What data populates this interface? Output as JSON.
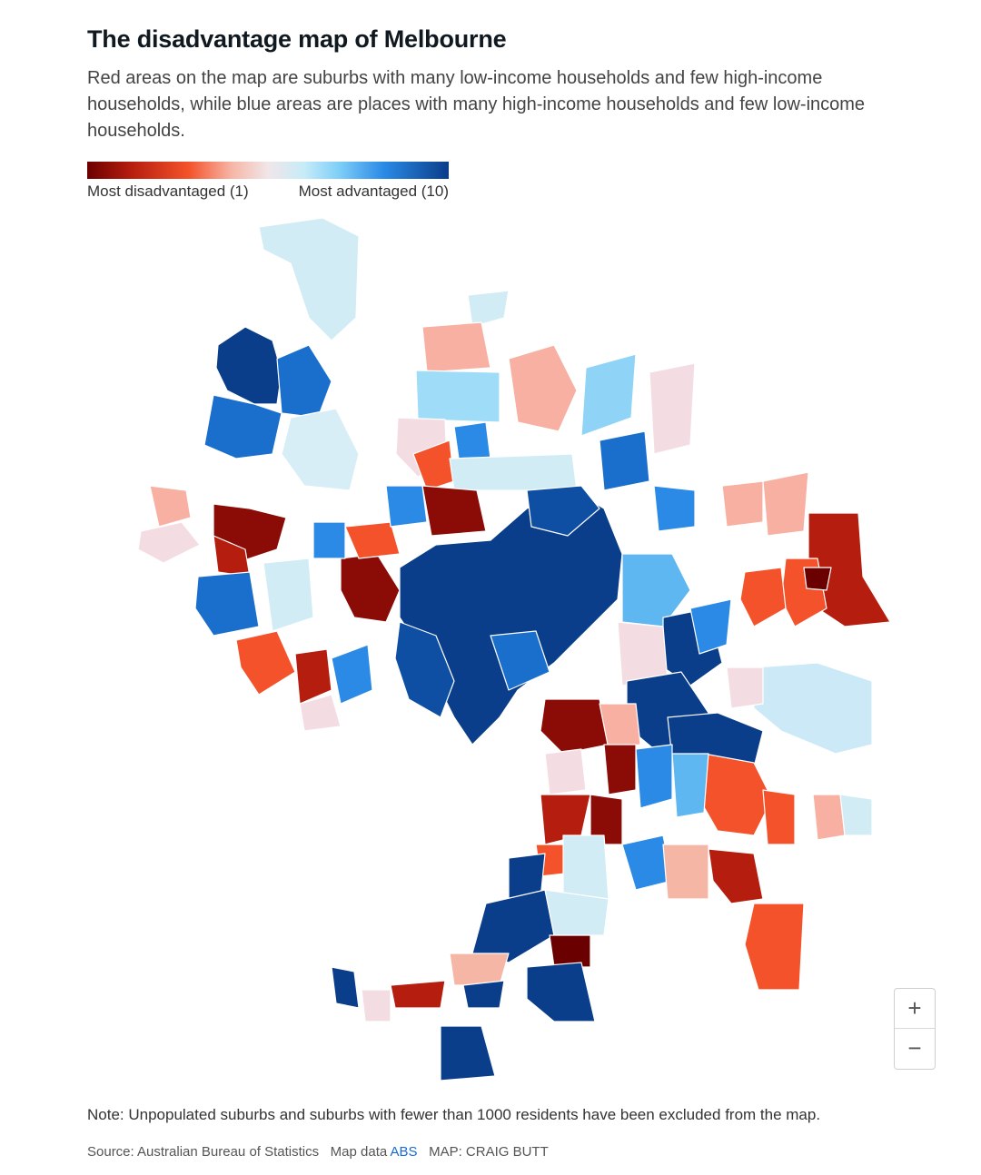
{
  "header": {
    "title": "The disadvantage map of Melbourne",
    "subtitle": "Red areas on the map are suburbs with many low-income households and few high-income households, while blue areas are places with many high-income households and few low-income households."
  },
  "legend": {
    "min_label": "Most disadvantaged (1)",
    "max_label": "Most advantaged (10)",
    "colors": [
      "#6b0000",
      "#b51d0e",
      "#f4522a",
      "#f6b6a6",
      "#f1e6e8",
      "#c6ecf8",
      "#7ccdf7",
      "#2b8ae6",
      "#0a3d8a"
    ]
  },
  "zoom": {
    "in_label": "+",
    "out_label": "−"
  },
  "footer": {
    "note": "Note: Unpopulated suburbs and suburbs with fewer than 1000 residents have been excluded from the map.",
    "source_prefix": "Source: Australian Bureau of Statistics",
    "map_data_label": "Map data",
    "map_data_link": "ABS",
    "credit": "MAP: CRAIG BUTT"
  }
}
